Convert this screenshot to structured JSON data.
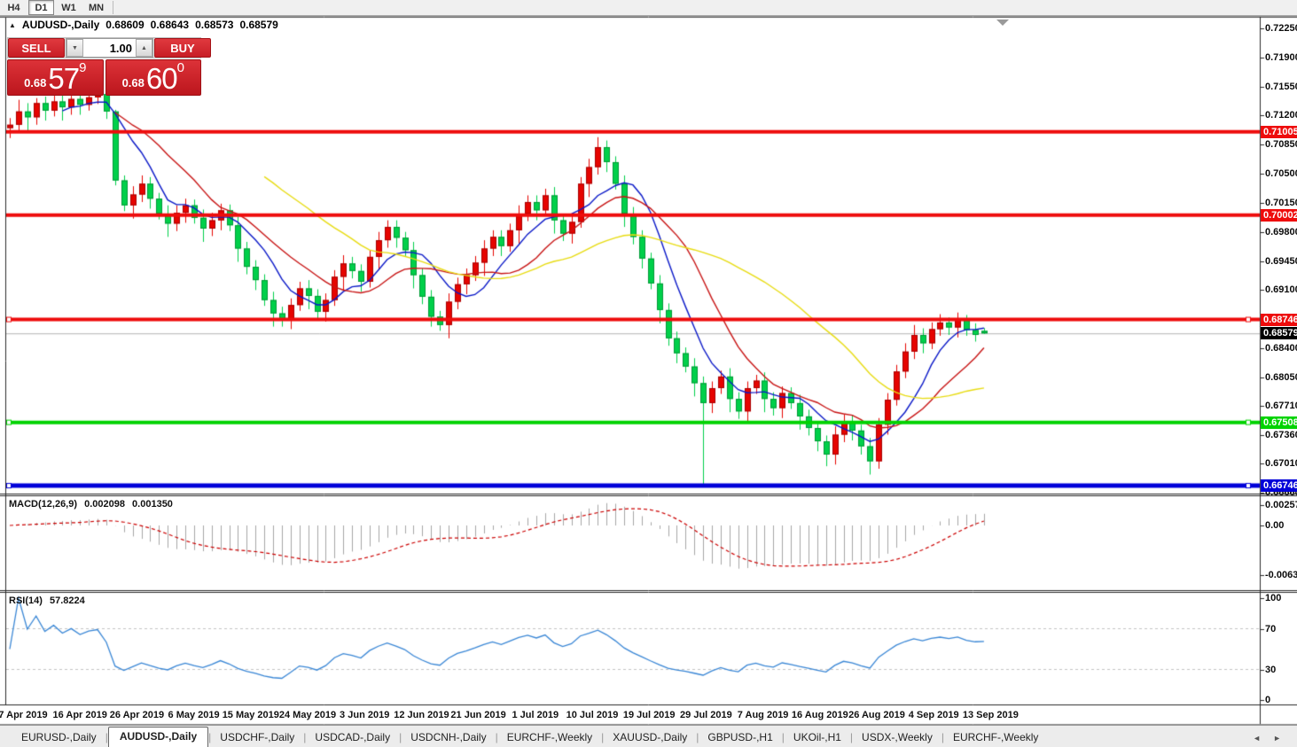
{
  "toolbar": {
    "timeframes": [
      {
        "label": "H4",
        "active": false
      },
      {
        "label": "D1",
        "active": true
      },
      {
        "label": "W1",
        "active": false
      },
      {
        "label": "MN",
        "active": false
      }
    ]
  },
  "quote_bar": {
    "collapse_icon": "▲",
    "symbol": "AUDUSD-,Daily",
    "open": "0.68609",
    "high": "0.68643",
    "low": "0.68573",
    "close": "0.68579"
  },
  "trade_panel": {
    "sell_label": "SELL",
    "buy_label": "BUY",
    "volume": "1.00",
    "spinner_down_icon": "▼",
    "spinner_up_icon": "▲",
    "sell_price": {
      "small": "0.68",
      "big": "57",
      "sup": "9"
    },
    "buy_price": {
      "small": "0.68",
      "big": "60",
      "sup": "0"
    }
  },
  "chart_data": {
    "type": "candlestick",
    "title": "AUDUSD-,Daily",
    "price_axis_ticks": [
      "0.72250",
      "0.71900",
      "0.71550",
      "0.71200",
      "0.70850",
      "0.70500",
      "0.70150",
      "0.69800",
      "0.69450",
      "0.69100",
      "0.68400",
      "0.68050",
      "0.67710",
      "0.67360",
      "0.67010",
      "0.66660"
    ],
    "hlines": [
      {
        "label": "0.71005",
        "color": "#ee0c0c",
        "width": 4,
        "handles": false
      },
      {
        "label": "0.70002",
        "color": "#ee0c0c",
        "width": 4,
        "handles": false
      },
      {
        "label": "0.68746",
        "color": "#ee0c0c",
        "width": 4,
        "handles": true
      },
      {
        "label": "0.67508",
        "color": "#00d300",
        "width": 4,
        "handles": true
      },
      {
        "label": "0.66746",
        "color": "#0000d9",
        "width": 5,
        "handles": true
      }
    ],
    "bid_line": {
      "label": "0.68579",
      "color": "#b4b4b4"
    },
    "moving_averages": [
      {
        "name": "ma-fast",
        "period": 7,
        "color": "#0a18c8"
      },
      {
        "name": "ma-medium",
        "period": 13,
        "color": "#c81414"
      },
      {
        "name": "ma-slow",
        "period": 30,
        "color": "#e8dc12"
      }
    ],
    "candles": [
      [
        0.7105,
        0.7117,
        0.7093,
        0.7109
      ],
      [
        0.7109,
        0.7139,
        0.7102,
        0.7125
      ],
      [
        0.7125,
        0.7135,
        0.7102,
        0.7118
      ],
      [
        0.7118,
        0.7141,
        0.7109,
        0.7135
      ],
      [
        0.7135,
        0.7143,
        0.7114,
        0.7126
      ],
      [
        0.7126,
        0.7145,
        0.7119,
        0.7137
      ],
      [
        0.7137,
        0.7147,
        0.7114,
        0.713
      ],
      [
        0.713,
        0.7148,
        0.7121,
        0.714
      ],
      [
        0.714,
        0.7148,
        0.7121,
        0.7133
      ],
      [
        0.7133,
        0.715,
        0.7126,
        0.7142
      ],
      [
        0.7142,
        0.7152,
        0.7134,
        0.7146
      ],
      [
        0.7146,
        0.715,
        0.7116,
        0.7125
      ],
      [
        0.7125,
        0.7127,
        0.7036,
        0.7042
      ],
      [
        0.7042,
        0.7048,
        0.7005,
        0.7012
      ],
      [
        0.7012,
        0.7035,
        0.6996,
        0.7025
      ],
      [
        0.7025,
        0.7048,
        0.7016,
        0.7038
      ],
      [
        0.7038,
        0.7046,
        0.7008,
        0.702
      ],
      [
        0.702,
        0.7027,
        0.6995,
        0.7002
      ],
      [
        0.7002,
        0.7012,
        0.6974,
        0.699
      ],
      [
        0.699,
        0.7012,
        0.6981,
        0.7003
      ],
      [
        0.7003,
        0.702,
        0.6991,
        0.7012
      ],
      [
        0.7012,
        0.7019,
        0.699,
        0.6997
      ],
      [
        0.6997,
        0.7007,
        0.6968,
        0.6984
      ],
      [
        0.6984,
        0.7003,
        0.6975,
        0.6994
      ],
      [
        0.6994,
        0.7014,
        0.6982,
        0.7006
      ],
      [
        0.7006,
        0.7013,
        0.6981,
        0.6988
      ],
      [
        0.6988,
        0.6998,
        0.6944,
        0.696
      ],
      [
        0.696,
        0.6968,
        0.6929,
        0.6938
      ],
      [
        0.6938,
        0.6946,
        0.691,
        0.6922
      ],
      [
        0.6922,
        0.6929,
        0.6891,
        0.6898
      ],
      [
        0.6898,
        0.6908,
        0.6866,
        0.6882
      ],
      [
        0.6882,
        0.689,
        0.6866,
        0.6875
      ],
      [
        0.6875,
        0.69,
        0.6863,
        0.6892
      ],
      [
        0.6892,
        0.692,
        0.6885,
        0.6912
      ],
      [
        0.6912,
        0.6922,
        0.6887,
        0.6903
      ],
      [
        0.6903,
        0.6911,
        0.6875,
        0.6884
      ],
      [
        0.6884,
        0.6906,
        0.6872,
        0.6898
      ],
      [
        0.6898,
        0.6934,
        0.6891,
        0.6926
      ],
      [
        0.6926,
        0.6952,
        0.691,
        0.6942
      ],
      [
        0.6942,
        0.695,
        0.6924,
        0.6933
      ],
      [
        0.6933,
        0.6941,
        0.6908,
        0.692
      ],
      [
        0.692,
        0.6958,
        0.6913,
        0.695
      ],
      [
        0.695,
        0.698,
        0.6934,
        0.697
      ],
      [
        0.697,
        0.6994,
        0.6961,
        0.6986
      ],
      [
        0.6986,
        0.6994,
        0.6961,
        0.6973
      ],
      [
        0.6973,
        0.698,
        0.6951,
        0.6958
      ],
      [
        0.6958,
        0.6968,
        0.6912,
        0.6928
      ],
      [
        0.6928,
        0.6936,
        0.6893,
        0.6902
      ],
      [
        0.6902,
        0.691,
        0.6866,
        0.6878
      ],
      [
        0.6878,
        0.6885,
        0.6861,
        0.6868
      ],
      [
        0.6868,
        0.6906,
        0.6852,
        0.6896
      ],
      [
        0.6896,
        0.6925,
        0.6887,
        0.6917
      ],
      [
        0.6917,
        0.6936,
        0.6905,
        0.6928
      ],
      [
        0.6928,
        0.6951,
        0.6921,
        0.6943
      ],
      [
        0.6943,
        0.697,
        0.6927,
        0.696
      ],
      [
        0.696,
        0.6982,
        0.6951,
        0.6974
      ],
      [
        0.6974,
        0.6982,
        0.6951,
        0.6963
      ],
      [
        0.6963,
        0.699,
        0.6956,
        0.6982
      ],
      [
        0.6982,
        0.7012,
        0.6966,
        0.7002
      ],
      [
        0.7002,
        0.7024,
        0.6993,
        0.7016
      ],
      [
        0.7016,
        0.7024,
        0.6994,
        0.7006
      ],
      [
        0.7006,
        0.7032,
        0.6999,
        0.7024
      ],
      [
        0.7024,
        0.7034,
        0.6978,
        0.6994
      ],
      [
        0.6994,
        0.7002,
        0.6969,
        0.6978
      ],
      [
        0.6978,
        0.7,
        0.6966,
        0.6992
      ],
      [
        0.6992,
        0.7046,
        0.6985,
        0.7038
      ],
      [
        0.7038,
        0.7068,
        0.7022,
        0.7058
      ],
      [
        0.7058,
        0.7094,
        0.7049,
        0.7082
      ],
      [
        0.7082,
        0.709,
        0.7052,
        0.7064
      ],
      [
        0.7064,
        0.7071,
        0.7031,
        0.7038
      ],
      [
        0.7038,
        0.7048,
        0.6986,
        0.7002
      ],
      [
        0.7002,
        0.701,
        0.6965,
        0.6974
      ],
      [
        0.6974,
        0.6982,
        0.6936,
        0.6948
      ],
      [
        0.6948,
        0.6955,
        0.6911,
        0.6918
      ],
      [
        0.6918,
        0.6928,
        0.687,
        0.6886
      ],
      [
        0.6886,
        0.6894,
        0.6843,
        0.6852
      ],
      [
        0.6852,
        0.686,
        0.6822,
        0.6834
      ],
      [
        0.6834,
        0.6841,
        0.6811,
        0.6818
      ],
      [
        0.6818,
        0.6828,
        0.6782,
        0.6798
      ],
      [
        0.6798,
        0.6806,
        0.6676,
        0.6774
      ],
      [
        0.6774,
        0.68,
        0.6762,
        0.6792
      ],
      [
        0.6792,
        0.6813,
        0.6785,
        0.6806
      ],
      [
        0.6806,
        0.6816,
        0.6763,
        0.6779
      ],
      [
        0.6779,
        0.6787,
        0.6755,
        0.6764
      ],
      [
        0.6764,
        0.68,
        0.6752,
        0.6792
      ],
      [
        0.6792,
        0.6808,
        0.6785,
        0.6801
      ],
      [
        0.6801,
        0.6811,
        0.6763,
        0.6779
      ],
      [
        0.6779,
        0.6787,
        0.6759,
        0.6768
      ],
      [
        0.6768,
        0.6794,
        0.6756,
        0.6786
      ],
      [
        0.6786,
        0.6793,
        0.6767,
        0.6774
      ],
      [
        0.6774,
        0.6784,
        0.6742,
        0.6758
      ],
      [
        0.6758,
        0.6766,
        0.6735,
        0.6744
      ],
      [
        0.6744,
        0.6752,
        0.6716,
        0.6728
      ],
      [
        0.6728,
        0.6735,
        0.6698,
        0.6712
      ],
      [
        0.6712,
        0.6746,
        0.67,
        0.6736
      ],
      [
        0.6736,
        0.676,
        0.6727,
        0.6752
      ],
      [
        0.6752,
        0.676,
        0.6729,
        0.6741
      ],
      [
        0.6741,
        0.6748,
        0.6712,
        0.6722
      ],
      [
        0.6722,
        0.6732,
        0.6688,
        0.6704
      ],
      [
        0.6704,
        0.6756,
        0.6695,
        0.6748
      ],
      [
        0.6748,
        0.6786,
        0.6736,
        0.6778
      ],
      [
        0.6778,
        0.682,
        0.6771,
        0.6812
      ],
      [
        0.6812,
        0.6846,
        0.6804,
        0.6836
      ],
      [
        0.6836,
        0.6868,
        0.6827,
        0.6856
      ],
      [
        0.6856,
        0.6864,
        0.6834,
        0.6846
      ],
      [
        0.6846,
        0.6871,
        0.6839,
        0.6863
      ],
      [
        0.6863,
        0.6881,
        0.6855,
        0.6871
      ],
      [
        0.6871,
        0.6877,
        0.6856,
        0.6865
      ],
      [
        0.6865,
        0.6883,
        0.6853,
        0.6875
      ],
      [
        0.6875,
        0.688,
        0.6855,
        0.6862
      ],
      [
        0.6862,
        0.687,
        0.6848,
        0.6856
      ],
      [
        0.68609,
        0.68643,
        0.68573,
        0.68579
      ]
    ],
    "dates": [
      "7 Apr 2019",
      "16 Apr 2019",
      "26 Apr 2019",
      "6 May 2019",
      "15 May 2019",
      "24 May 2019",
      "3 Jun 2019",
      "12 Jun 2019",
      "21 Jun 2019",
      "1 Jul 2019",
      "10 Jul 2019",
      "19 Jul 2019",
      "29 Jul 2019",
      "7 Aug 2019",
      "16 Aug 2019",
      "26 Aug 2019",
      "4 Sep 2019",
      "13 Sep 2019"
    ],
    "macd": {
      "label": "MACD(12,26,9)",
      "value_main": "0.002098",
      "value_signal": "0.001350",
      "fast": 12,
      "slow": 26,
      "signal": 9,
      "axis_labels": [
        "0.002574",
        "0.00",
        "-0.006326"
      ],
      "histogram_color": "#a6a6a6",
      "signal_color": "#cc0000"
    },
    "rsi": {
      "label": "RSI(14)",
      "value": "57.8224",
      "period": 14,
      "levels": [
        {
          "label": "100",
          "dashed": false
        },
        {
          "label": "70",
          "dashed": true
        },
        {
          "label": "30",
          "dashed": true
        },
        {
          "label": "0",
          "dashed": false
        }
      ],
      "line_color": "#3a87d6"
    },
    "colors": {
      "bull_body": "#e60400",
      "bull_border": "#a80000",
      "bear_body": "#00d04a",
      "bear_border": "#009a36",
      "badge_bid_bg": "#000000"
    }
  },
  "tabs": {
    "items": [
      {
        "label": "EURUSD-,Daily",
        "active": false
      },
      {
        "label": "AUDUSD-,Daily",
        "active": true
      },
      {
        "label": "USDCHF-,Daily",
        "active": false
      },
      {
        "label": "USDCAD-,Daily",
        "active": false
      },
      {
        "label": "USDCNH-,Daily",
        "active": false
      },
      {
        "label": "EURCHF-,Weekly",
        "active": false
      },
      {
        "label": "XAUUSD-,Daily",
        "active": false
      },
      {
        "label": "GBPUSD-,H1",
        "active": false
      },
      {
        "label": "UKOil-,H1",
        "active": false
      },
      {
        "label": "USDX-,Weekly",
        "active": false
      },
      {
        "label": "EURCHF-,Weekly",
        "active": false
      }
    ],
    "scroll_left_icon": "◄",
    "scroll_right_icon": "►"
  }
}
